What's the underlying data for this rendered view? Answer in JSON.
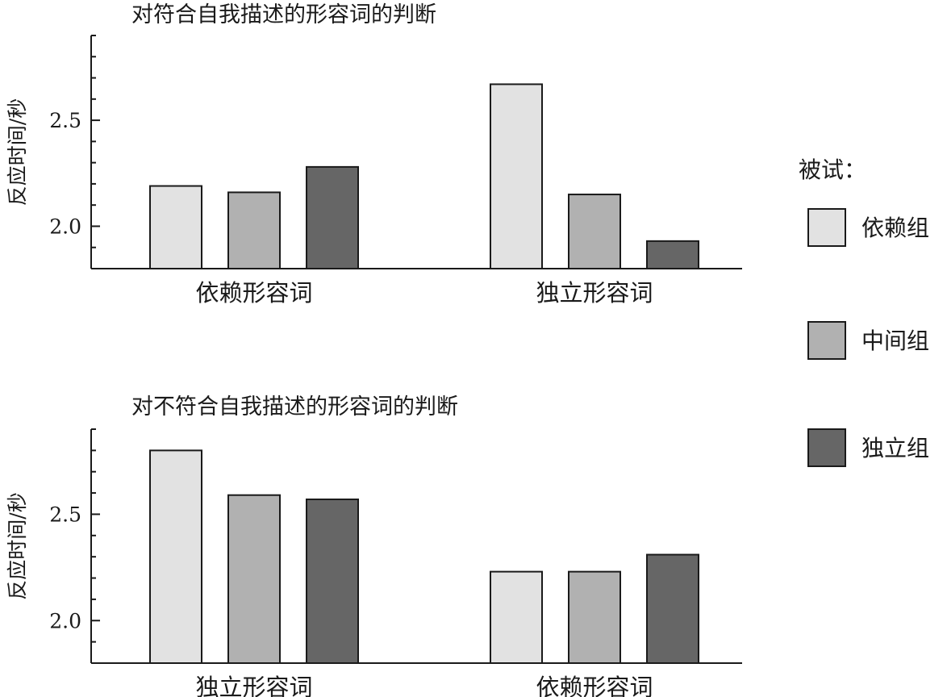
{
  "legend": {
    "title": "被试：",
    "colors": [
      "#e2e2e2",
      "#b1b1b1",
      "#666666"
    ]
  },
  "chart_data": [
    {
      "type": "bar",
      "title": "对符合自我描述的形容词的判断",
      "ylabel": "反应时间/秒",
      "xlabel": "",
      "ylim": [
        1.8,
        2.9
      ],
      "yticks": [
        2.0,
        2.5
      ],
      "yticklabels": [
        "2.0",
        "2.5"
      ],
      "categories": [
        "依赖形容词",
        "独立形容词"
      ],
      "series": [
        {
          "name": "依赖组",
          "values": [
            2.19,
            2.67
          ]
        },
        {
          "name": "中间组",
          "values": [
            2.16,
            2.15
          ]
        },
        {
          "name": "独立组",
          "values": [
            2.28,
            1.93
          ]
        }
      ]
    },
    {
      "type": "bar",
      "title": "对不符合自我描述的形容词的判断",
      "ylabel": "反应时间/秒",
      "xlabel": "",
      "ylim": [
        1.8,
        2.9
      ],
      "yticks": [
        2.0,
        2.5
      ],
      "yticklabels": [
        "2.0",
        "2.5"
      ],
      "categories": [
        "独立形容词",
        "依赖形容词"
      ],
      "series": [
        {
          "name": "依赖组",
          "values": [
            2.8,
            2.23
          ]
        },
        {
          "name": "中间组",
          "values": [
            2.59,
            2.23
          ]
        },
        {
          "name": "独立组",
          "values": [
            2.57,
            2.31
          ]
        }
      ]
    }
  ]
}
